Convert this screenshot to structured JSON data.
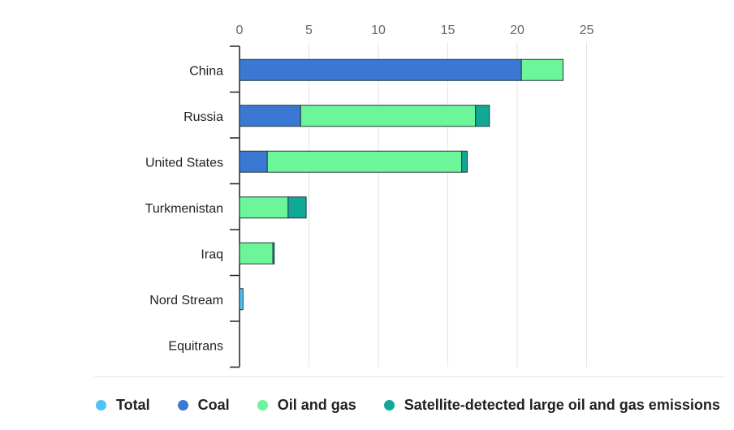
{
  "chart_data": {
    "type": "bar",
    "orientation": "horizontal",
    "stacked": true,
    "categories": [
      "China",
      "Russia",
      "United States",
      "Turkmenistan",
      "Iraq",
      "Nord Stream",
      "Equitrans"
    ],
    "x_ticks": [
      0,
      5,
      10,
      15,
      20,
      25
    ],
    "xlim": [
      0,
      25
    ],
    "grid": true,
    "legend_position": "bottom",
    "series": [
      {
        "name": "Total",
        "color": "#4fc3f7",
        "values": [
          0,
          0,
          0,
          0,
          0,
          0.25,
          0
        ]
      },
      {
        "name": "Coal",
        "color": "#3a78d4",
        "values": [
          20.3,
          4.4,
          2.0,
          0,
          0,
          0,
          0
        ]
      },
      {
        "name": "Oil and gas",
        "color": "#6df59a",
        "values": [
          3.0,
          12.6,
          14.0,
          3.5,
          2.4,
          0,
          0
        ]
      },
      {
        "name": "Satellite-detected large oil and gas emissions",
        "color": "#10a896",
        "values": [
          0,
          1.0,
          0.4,
          1.3,
          0.1,
          0,
          0
        ]
      }
    ]
  }
}
